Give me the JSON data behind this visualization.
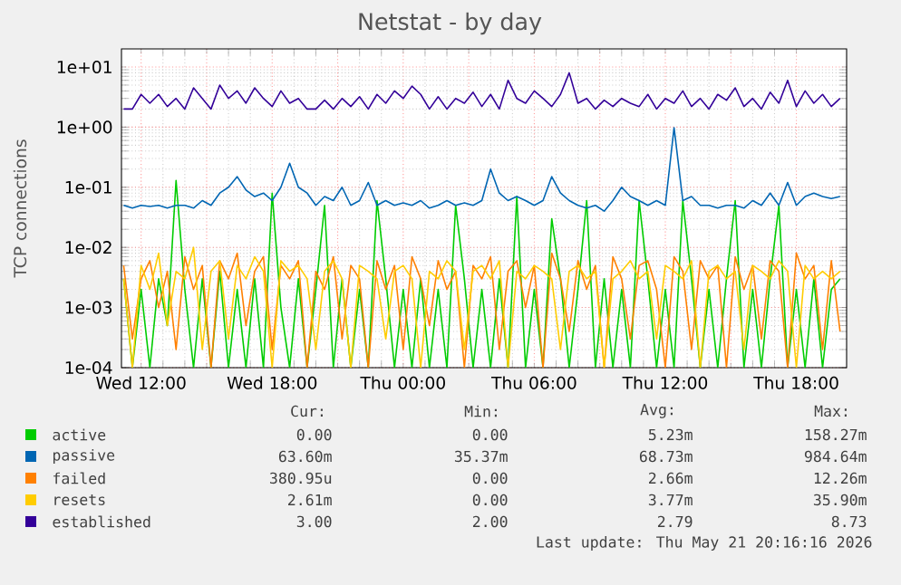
{
  "chart_data": {
    "type": "line",
    "title": "Netstat - by day",
    "ylabel": "TCP connections",
    "x": [
      "2026-05-20T11:12",
      "2026-05-20T11:36",
      "2026-05-20T12:00",
      "2026-05-20T12:24",
      "2026-05-20T12:48",
      "2026-05-20T13:12",
      "2026-05-20T13:36",
      "2026-05-20T14:00",
      "2026-05-20T14:24",
      "2026-05-20T14:48",
      "2026-05-20T15:12",
      "2026-05-20T15:36",
      "2026-05-20T16:00",
      "2026-05-20T16:24",
      "2026-05-20T16:48",
      "2026-05-20T17:12",
      "2026-05-20T17:36",
      "2026-05-20T18:00",
      "2026-05-20T18:24",
      "2026-05-20T18:48",
      "2026-05-20T19:12",
      "2026-05-20T19:36",
      "2026-05-20T20:00",
      "2026-05-20T20:24",
      "2026-05-20T20:48",
      "2026-05-20T21:12",
      "2026-05-20T21:36",
      "2026-05-20T22:00",
      "2026-05-20T22:24",
      "2026-05-20T22:48",
      "2026-05-20T23:12",
      "2026-05-20T23:36",
      "2026-05-21T00:00",
      "2026-05-21T00:24",
      "2026-05-21T00:48",
      "2026-05-21T01:12",
      "2026-05-21T01:36",
      "2026-05-21T02:00",
      "2026-05-21T02:24",
      "2026-05-21T02:48",
      "2026-05-21T03:12",
      "2026-05-21T03:36",
      "2026-05-21T04:00",
      "2026-05-21T04:24",
      "2026-05-21T04:48",
      "2026-05-21T05:12",
      "2026-05-21T05:36",
      "2026-05-21T06:00",
      "2026-05-21T06:24",
      "2026-05-21T06:48",
      "2026-05-21T07:12",
      "2026-05-21T07:36",
      "2026-05-21T08:00",
      "2026-05-21T08:24",
      "2026-05-21T08:48",
      "2026-05-21T09:12",
      "2026-05-21T09:36",
      "2026-05-21T10:00",
      "2026-05-21T10:24",
      "2026-05-21T10:48",
      "2026-05-21T11:12",
      "2026-05-21T11:36",
      "2026-05-21T12:00",
      "2026-05-21T12:24",
      "2026-05-21T12:48",
      "2026-05-21T13:12",
      "2026-05-21T13:36",
      "2026-05-21T14:00",
      "2026-05-21T14:24",
      "2026-05-21T14:48",
      "2026-05-21T15:12",
      "2026-05-21T15:36",
      "2026-05-21T16:00",
      "2026-05-21T16:24",
      "2026-05-21T16:48",
      "2026-05-21T17:12",
      "2026-05-21T17:36",
      "2026-05-21T18:00",
      "2026-05-21T18:24",
      "2026-05-21T18:48",
      "2026-05-21T19:12",
      "2026-05-21T19:36",
      "2026-05-21T20:00"
    ],
    "series": [
      {
        "name": "active",
        "color": "#00cc00",
        "values": [
          0.003,
          0.0001,
          0.002,
          0.0001,
          0.003,
          0.0005,
          0.13,
          0.002,
          0.0001,
          0.003,
          0.0001,
          0.004,
          0.0001,
          0.002,
          0.0001,
          0.003,
          0.0001,
          0.08,
          0.001,
          0.0001,
          0.003,
          0.0001,
          0.002,
          0.05,
          0.0001,
          0.003,
          0.0001,
          0.002,
          0.0001,
          0.06,
          0.003,
          0.0001,
          0.002,
          0.0001,
          0.003,
          0.0001,
          0.002,
          0.0001,
          0.05,
          0.003,
          0.0001,
          0.002,
          0.0001,
          0.003,
          0.0001,
          0.07,
          0.0001,
          0.002,
          0.0001,
          0.03,
          0.003,
          0.0001,
          0.002,
          0.06,
          0.0001,
          0.003,
          0.0001,
          0.002,
          0.0001,
          0.06,
          0.003,
          0.0001,
          0.002,
          0.0001,
          0.06,
          0.003,
          0.0001,
          0.002,
          0.0001,
          0.003,
          0.06,
          0.0001,
          0.002,
          0.0001,
          0.003,
          0.05,
          0.0001,
          0.002,
          0.0001,
          0.003,
          0.0001,
          0.002,
          0.003
        ]
      },
      {
        "name": "passive",
        "color": "#0066b3",
        "values": [
          0.05,
          0.045,
          0.05,
          0.048,
          0.05,
          0.045,
          0.05,
          0.05,
          0.045,
          0.06,
          0.05,
          0.08,
          0.1,
          0.15,
          0.09,
          0.07,
          0.08,
          0.06,
          0.1,
          0.25,
          0.1,
          0.08,
          0.05,
          0.07,
          0.06,
          0.1,
          0.05,
          0.06,
          0.12,
          0.05,
          0.06,
          0.05,
          0.055,
          0.05,
          0.06,
          0.045,
          0.05,
          0.06,
          0.05,
          0.055,
          0.05,
          0.06,
          0.2,
          0.08,
          0.06,
          0.07,
          0.06,
          0.05,
          0.06,
          0.15,
          0.08,
          0.06,
          0.05,
          0.045,
          0.05,
          0.04,
          0.06,
          0.1,
          0.07,
          0.06,
          0.05,
          0.06,
          0.05,
          0.98,
          0.06,
          0.07,
          0.05,
          0.05,
          0.045,
          0.05,
          0.05,
          0.045,
          0.06,
          0.05,
          0.08,
          0.05,
          0.12,
          0.05,
          0.07,
          0.08,
          0.07,
          0.065,
          0.07
        ]
      },
      {
        "name": "failed",
        "color": "#ff8000",
        "values": [
          0.005,
          0.0003,
          0.003,
          0.006,
          0.001,
          0.004,
          0.0002,
          0.007,
          0.002,
          0.005,
          0.0001,
          0.006,
          0.003,
          0.008,
          0.0005,
          0.004,
          0.007,
          0.0002,
          0.005,
          0.003,
          0.006,
          0.0001,
          0.004,
          0.002,
          0.007,
          0.0003,
          0.005,
          0.003,
          0.0001,
          0.006,
          0.002,
          0.005,
          0.0002,
          0.007,
          0.003,
          0.0005,
          0.006,
          0.002,
          0.004,
          0.0001,
          0.005,
          0.003,
          0.007,
          0.0002,
          0.004,
          0.006,
          0.001,
          0.005,
          0.0001,
          0.008,
          0.003,
          0.0004,
          0.006,
          0.002,
          0.005,
          0.0001,
          0.007,
          0.003,
          0.0003,
          0.005,
          0.006,
          0.002,
          0.0001,
          0.007,
          0.004,
          0.0002,
          0.006,
          0.003,
          0.005,
          0.0001,
          0.007,
          0.002,
          0.005,
          0.0003,
          0.006,
          0.004,
          0.0001,
          0.008,
          0.003,
          0.005,
          0.0002,
          0.006,
          0.0004
        ]
      },
      {
        "name": "resets",
        "color": "#ffcc00",
        "values": [
          0.003,
          0.0001,
          0.005,
          0.002,
          0.008,
          0.0005,
          0.004,
          0.003,
          0.01,
          0.0002,
          0.004,
          0.006,
          0.0003,
          0.005,
          0.003,
          0.007,
          0.004,
          0.0001,
          0.006,
          0.004,
          0.005,
          0.003,
          0.0002,
          0.004,
          0.006,
          0.003,
          0.0001,
          0.005,
          0.004,
          0.003,
          0.0003,
          0.004,
          0.005,
          0.003,
          0.0001,
          0.004,
          0.003,
          0.006,
          0.004,
          0.0002,
          0.004,
          0.005,
          0.003,
          0.006,
          0.0001,
          0.004,
          0.003,
          0.005,
          0.004,
          0.003,
          0.0002,
          0.004,
          0.005,
          0.003,
          0.004,
          0.0001,
          0.003,
          0.004,
          0.006,
          0.003,
          0.004,
          0.0003,
          0.005,
          0.004,
          0.003,
          0.006,
          0.0001,
          0.004,
          0.005,
          0.003,
          0.004,
          0.0002,
          0.005,
          0.004,
          0.003,
          0.006,
          0.004,
          0.0001,
          0.005,
          0.003,
          0.004,
          0.003,
          0.004
        ]
      },
      {
        "name": "established",
        "color": "#330099",
        "values": [
          2,
          2,
          3.5,
          2.5,
          3.5,
          2.2,
          3,
          2,
          4.5,
          3,
          2,
          5,
          3,
          4,
          2.5,
          4.5,
          3,
          2.2,
          4,
          2.5,
          3,
          2,
          2,
          2.8,
          2,
          3,
          2.2,
          3.2,
          2,
          3.5,
          2.5,
          4,
          3,
          4.8,
          3.5,
          2,
          3.2,
          2,
          3,
          2.5,
          3.8,
          2.2,
          3.5,
          2,
          6,
          3,
          2.5,
          4,
          3,
          2.2,
          3.5,
          8,
          2.5,
          3,
          2,
          2.8,
          2.2,
          3,
          2.5,
          2.2,
          3.5,
          2,
          3,
          2.5,
          4,
          2.2,
          3,
          2,
          3.5,
          2.8,
          4.5,
          2.2,
          3,
          2,
          3.8,
          2.5,
          6,
          2.2,
          4,
          2.5,
          3.5,
          2.2,
          3
        ]
      }
    ],
    "xlim": [
      "2026-05-20T11:06",
      "2026-05-21T20:18"
    ],
    "xticks": [
      {
        "value": "2026-05-20T12:00",
        "label": "Wed 12:00"
      },
      {
        "value": "2026-05-20T15:00",
        "label": null
      },
      {
        "value": "2026-05-20T18:00",
        "label": "Wed 18:00"
      },
      {
        "value": "2026-05-20T21:00",
        "label": null
      },
      {
        "value": "2026-05-21T00:00",
        "label": "Thu 00:00"
      },
      {
        "value": "2026-05-21T03:00",
        "label": null
      },
      {
        "value": "2026-05-21T06:00",
        "label": "Thu 06:00"
      },
      {
        "value": "2026-05-21T09:00",
        "label": null
      },
      {
        "value": "2026-05-21T12:00",
        "label": "Thu 12:00"
      },
      {
        "value": "2026-05-21T15:00",
        "label": null
      },
      {
        "value": "2026-05-21T18:00",
        "label": "Thu 18:00"
      }
    ],
    "ylim": [
      0.0001,
      20
    ],
    "yticks": [
      {
        "value": 0.0001,
        "label": "1e-04"
      },
      {
        "value": 0.001,
        "label": "1e-03"
      },
      {
        "value": 0.01,
        "label": "1e-02"
      },
      {
        "value": 0.1,
        "label": "1e-01"
      },
      {
        "value": 1,
        "label": "1e+00"
      },
      {
        "value": 10,
        "label": "1e+01"
      }
    ],
    "log": "y",
    "grid": true,
    "legend": "bottom",
    "marker": "none",
    "line_style": "solid",
    "annotations": [
      "Cur:",
      "Min:",
      "Avg:",
      "Max:",
      "0.00",
      "0.00",
      "5.23m",
      "158.27m",
      "63.60m",
      "35.37m",
      "68.73m",
      "984.64m",
      "380.95u",
      "0.00",
      "2.66m",
      "12.26m",
      "2.61m",
      "0.00",
      "3.77m",
      "35.90m",
      "3.00",
      "2.00",
      "2.79",
      "8.73",
      "Last update: Thu May 21 20:16:16 2026"
    ]
  }
}
